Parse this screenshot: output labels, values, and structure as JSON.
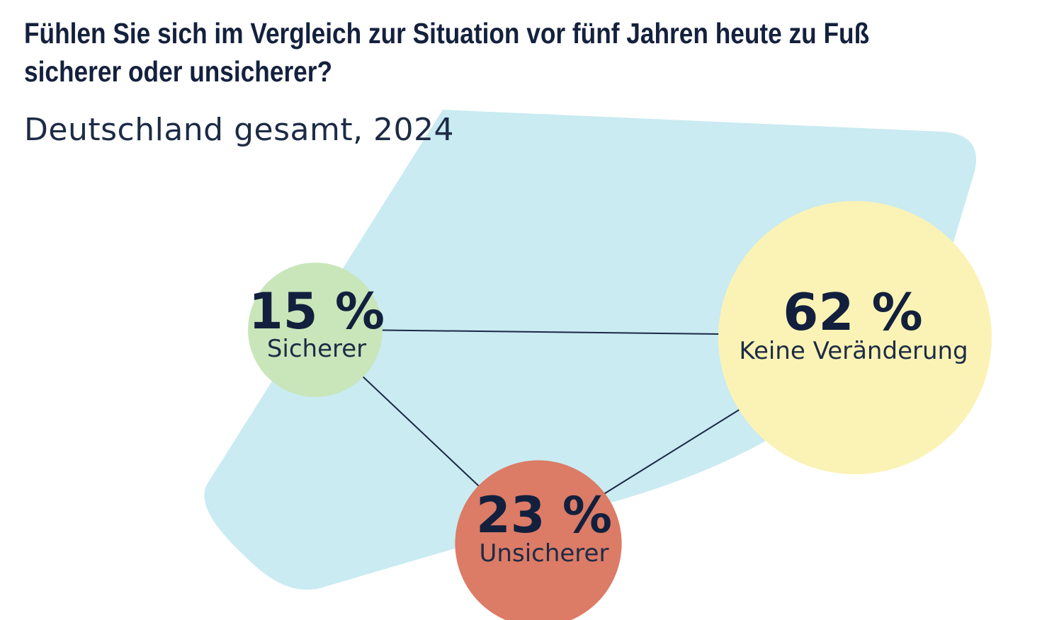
{
  "title_lines": [
    "Fühlen Sie sich im Vergleich zur Situation vor fünf Jahren heute zu Fuß",
    "sicherer oder unsicherer?"
  ],
  "subtitle": "Deutschland gesamt, 2024",
  "chart_data": {
    "type": "bubble",
    "title": "Fühlen Sie sich im Vergleich zur Situation vor fünf Jahren heute zu Fuß sicherer oder unsicherer?",
    "subtitle": "Deutschland gesamt, 2024",
    "unit": "%",
    "categories": [
      "Sicherer",
      "Keine Veränderung",
      "Unsicherer"
    ],
    "values": [
      15,
      62,
      23
    ],
    "labels": [
      "15 %",
      "62 %",
      "23 %"
    ],
    "colors": [
      "#c8e6ba",
      "#fbf3b5",
      "#dc7b66"
    ],
    "background_shape_color": "#c9ebf1",
    "connector_color": "#1a2845"
  }
}
